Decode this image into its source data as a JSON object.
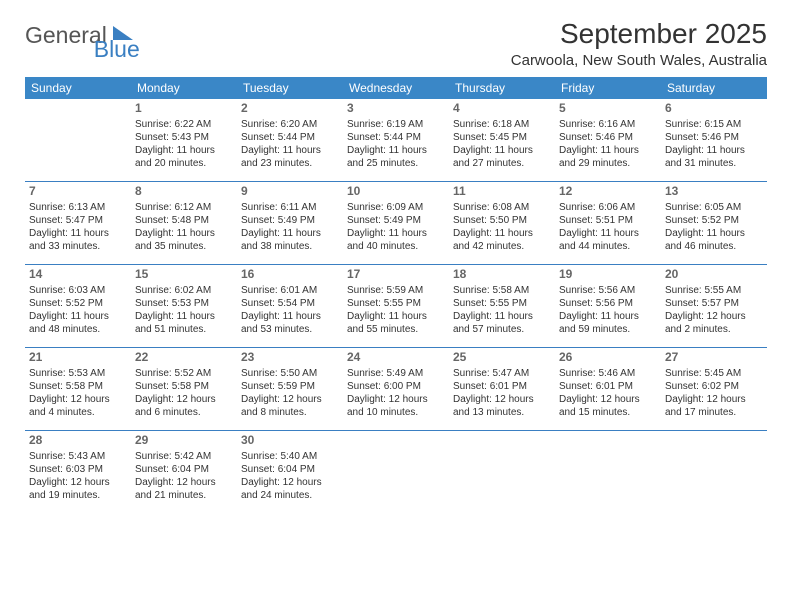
{
  "logo": {
    "part1": "General",
    "part2": "Blue"
  },
  "title": "September 2025",
  "location": "Carwoola, New South Wales, Australia",
  "colors": {
    "header_bg": "#3a87c7",
    "header_text": "#ffffff",
    "accent": "#3a7fc2",
    "text": "#333333",
    "daynum": "#666666",
    "logo_gray": "#555555",
    "background": "#ffffff"
  },
  "dayHeaders": [
    "Sunday",
    "Monday",
    "Tuesday",
    "Wednesday",
    "Thursday",
    "Friday",
    "Saturday"
  ],
  "weeks": [
    [
      null,
      {
        "n": "1",
        "sr": "6:22 AM",
        "ss": "5:43 PM",
        "dl": "11 hours and 20 minutes."
      },
      {
        "n": "2",
        "sr": "6:20 AM",
        "ss": "5:44 PM",
        "dl": "11 hours and 23 minutes."
      },
      {
        "n": "3",
        "sr": "6:19 AM",
        "ss": "5:44 PM",
        "dl": "11 hours and 25 minutes."
      },
      {
        "n": "4",
        "sr": "6:18 AM",
        "ss": "5:45 PM",
        "dl": "11 hours and 27 minutes."
      },
      {
        "n": "5",
        "sr": "6:16 AM",
        "ss": "5:46 PM",
        "dl": "11 hours and 29 minutes."
      },
      {
        "n": "6",
        "sr": "6:15 AM",
        "ss": "5:46 PM",
        "dl": "11 hours and 31 minutes."
      }
    ],
    [
      {
        "n": "7",
        "sr": "6:13 AM",
        "ss": "5:47 PM",
        "dl": "11 hours and 33 minutes."
      },
      {
        "n": "8",
        "sr": "6:12 AM",
        "ss": "5:48 PM",
        "dl": "11 hours and 35 minutes."
      },
      {
        "n": "9",
        "sr": "6:11 AM",
        "ss": "5:49 PM",
        "dl": "11 hours and 38 minutes."
      },
      {
        "n": "10",
        "sr": "6:09 AM",
        "ss": "5:49 PM",
        "dl": "11 hours and 40 minutes."
      },
      {
        "n": "11",
        "sr": "6:08 AM",
        "ss": "5:50 PM",
        "dl": "11 hours and 42 minutes."
      },
      {
        "n": "12",
        "sr": "6:06 AM",
        "ss": "5:51 PM",
        "dl": "11 hours and 44 minutes."
      },
      {
        "n": "13",
        "sr": "6:05 AM",
        "ss": "5:52 PM",
        "dl": "11 hours and 46 minutes."
      }
    ],
    [
      {
        "n": "14",
        "sr": "6:03 AM",
        "ss": "5:52 PM",
        "dl": "11 hours and 48 minutes."
      },
      {
        "n": "15",
        "sr": "6:02 AM",
        "ss": "5:53 PM",
        "dl": "11 hours and 51 minutes."
      },
      {
        "n": "16",
        "sr": "6:01 AM",
        "ss": "5:54 PM",
        "dl": "11 hours and 53 minutes."
      },
      {
        "n": "17",
        "sr": "5:59 AM",
        "ss": "5:55 PM",
        "dl": "11 hours and 55 minutes."
      },
      {
        "n": "18",
        "sr": "5:58 AM",
        "ss": "5:55 PM",
        "dl": "11 hours and 57 minutes."
      },
      {
        "n": "19",
        "sr": "5:56 AM",
        "ss": "5:56 PM",
        "dl": "11 hours and 59 minutes."
      },
      {
        "n": "20",
        "sr": "5:55 AM",
        "ss": "5:57 PM",
        "dl": "12 hours and 2 minutes."
      }
    ],
    [
      {
        "n": "21",
        "sr": "5:53 AM",
        "ss": "5:58 PM",
        "dl": "12 hours and 4 minutes."
      },
      {
        "n": "22",
        "sr": "5:52 AM",
        "ss": "5:58 PM",
        "dl": "12 hours and 6 minutes."
      },
      {
        "n": "23",
        "sr": "5:50 AM",
        "ss": "5:59 PM",
        "dl": "12 hours and 8 minutes."
      },
      {
        "n": "24",
        "sr": "5:49 AM",
        "ss": "6:00 PM",
        "dl": "12 hours and 10 minutes."
      },
      {
        "n": "25",
        "sr": "5:47 AM",
        "ss": "6:01 PM",
        "dl": "12 hours and 13 minutes."
      },
      {
        "n": "26",
        "sr": "5:46 AM",
        "ss": "6:01 PM",
        "dl": "12 hours and 15 minutes."
      },
      {
        "n": "27",
        "sr": "5:45 AM",
        "ss": "6:02 PM",
        "dl": "12 hours and 17 minutes."
      }
    ],
    [
      {
        "n": "28",
        "sr": "5:43 AM",
        "ss": "6:03 PM",
        "dl": "12 hours and 19 minutes."
      },
      {
        "n": "29",
        "sr": "5:42 AM",
        "ss": "6:04 PM",
        "dl": "12 hours and 21 minutes."
      },
      {
        "n": "30",
        "sr": "5:40 AM",
        "ss": "6:04 PM",
        "dl": "12 hours and 24 minutes."
      },
      null,
      null,
      null,
      null
    ]
  ],
  "labels": {
    "sunrise": "Sunrise:",
    "sunset": "Sunset:",
    "daylight": "Daylight:"
  }
}
